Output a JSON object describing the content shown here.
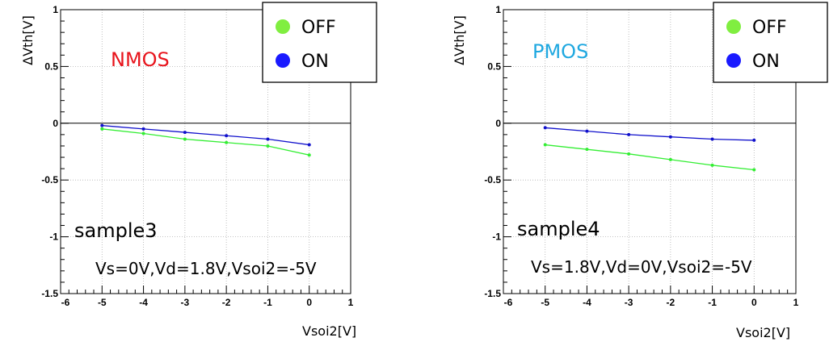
{
  "chart_data": [
    {
      "type": "line",
      "xlabel": "Vsoi2[V]",
      "ylabel": "ΔVth[V]",
      "xlim": [
        -6,
        1
      ],
      "ylim": [
        -1.5,
        1
      ],
      "x_ticks": [
        "-6",
        "-5",
        "-4",
        "-3",
        "-2",
        "-1",
        "0",
        "1"
      ],
      "y_ticks": [
        "1",
        "0.5",
        "0",
        "-0.5",
        "-1",
        "-1.5"
      ],
      "grid": true,
      "legend_position": "top-right",
      "annotations": {
        "device": "NMOS",
        "device_color": "#e8141c",
        "sample": "sample3",
        "conditions": "Vs=0V,Vd=1.8V,Vsoi2=-5V"
      },
      "x": [
        -5,
        -4,
        -3,
        -2,
        -1,
        0
      ],
      "series": [
        {
          "name": "OFF",
          "color": "#33ee33",
          "legend_color": "#80ee40",
          "values": [
            -0.05,
            -0.09,
            -0.14,
            -0.17,
            -0.2,
            -0.28
          ]
        },
        {
          "name": "ON",
          "color": "#1111cc",
          "legend_color": "#1a1aff",
          "values": [
            -0.02,
            -0.05,
            -0.08,
            -0.11,
            -0.14,
            -0.19
          ]
        }
      ]
    },
    {
      "type": "line",
      "xlabel": "Vsoi2[V]",
      "ylabel": "ΔVth[V]",
      "xlim": [
        -6,
        1
      ],
      "ylim": [
        -1.5,
        1
      ],
      "x_ticks": [
        "-6",
        "-5",
        "-4",
        "-3",
        "-2",
        "-1",
        "0",
        "1"
      ],
      "y_ticks": [
        "1",
        "0.5",
        "0",
        "-0.5",
        "-1",
        "-1.5"
      ],
      "grid": true,
      "legend_position": "top-right",
      "annotations": {
        "device": "PMOS",
        "device_color": "#1fa8e0",
        "sample": "sample4",
        "conditions": "Vs=1.8V,Vd=0V,Vsoi2=-5V"
      },
      "x": [
        -5,
        -4,
        -3,
        -2,
        -1,
        0
      ],
      "series": [
        {
          "name": "OFF",
          "color": "#33ee33",
          "legend_color": "#80ee40",
          "values": [
            -0.19,
            -0.23,
            -0.27,
            -0.32,
            -0.37,
            -0.41
          ]
        },
        {
          "name": "ON",
          "color": "#1111cc",
          "legend_color": "#1a1aff",
          "values": [
            -0.04,
            -0.07,
            -0.1,
            -0.12,
            -0.14,
            -0.15
          ]
        }
      ]
    }
  ]
}
